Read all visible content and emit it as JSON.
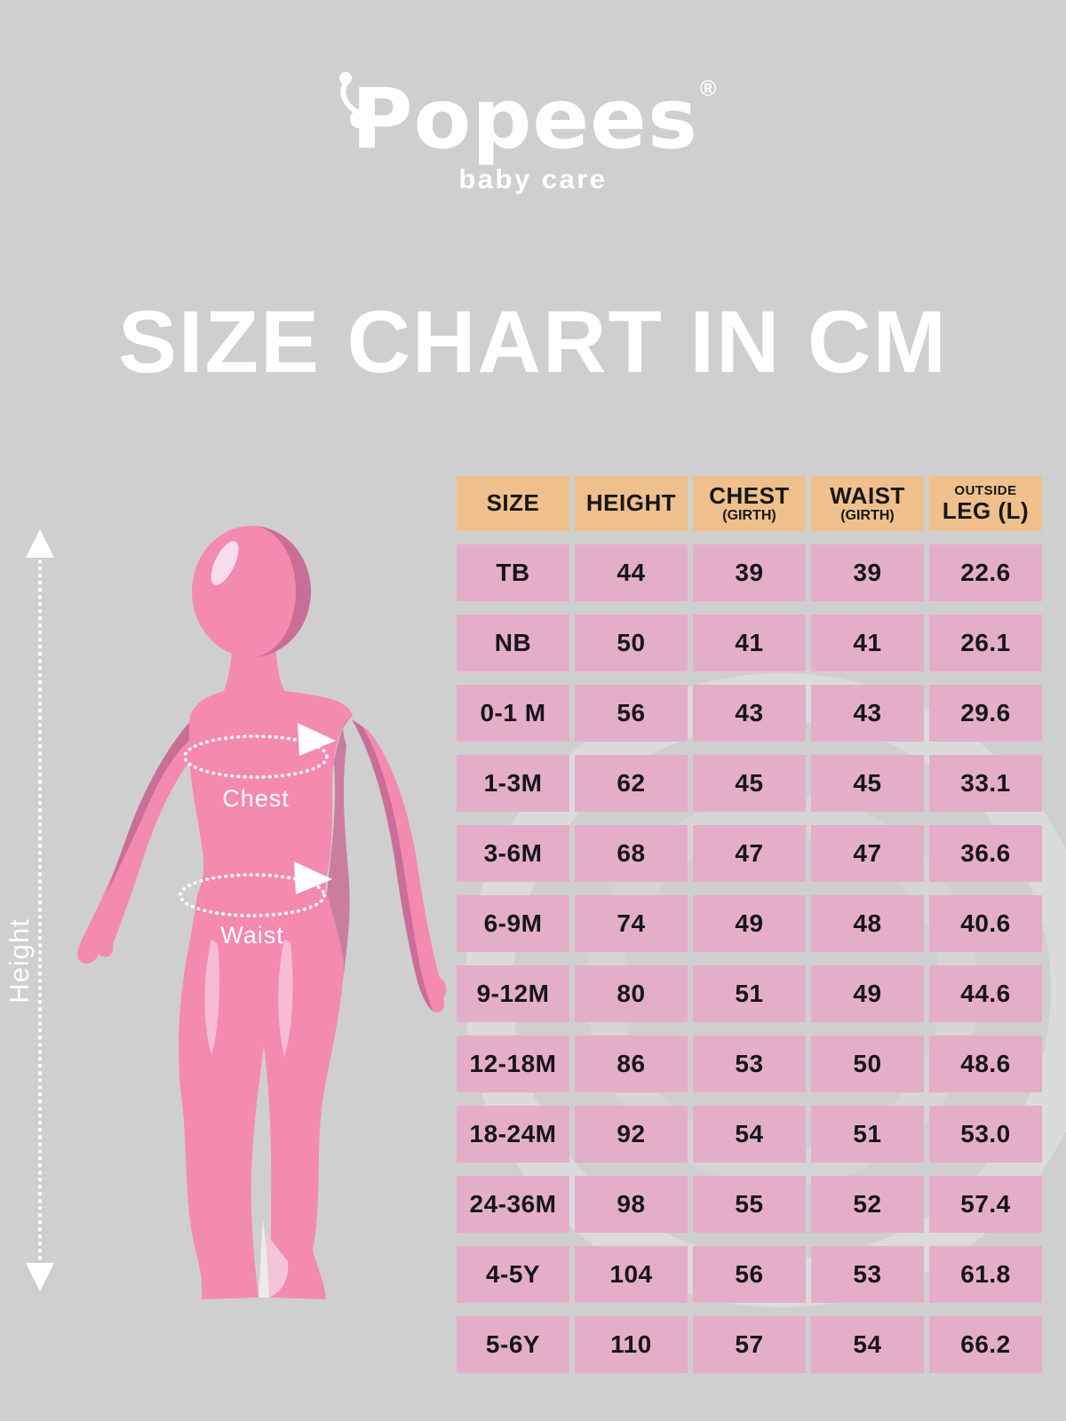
{
  "brand": {
    "name": "Popees",
    "registered": "®",
    "tagline": "baby care"
  },
  "title": "SIZE CHART IN CM",
  "figure_labels": {
    "height": "Height",
    "chest": "Chest",
    "waist": "Waist"
  },
  "table": {
    "headers": [
      {
        "main": "SIZE"
      },
      {
        "main": "HEIGHT"
      },
      {
        "main": "CHEST",
        "sub": "(GIRTH)"
      },
      {
        "main": "WAIST",
        "sub": "(GIRTH)"
      },
      {
        "top": "OUTSIDE",
        "main": "LEG (L)"
      }
    ],
    "rows": [
      {
        "size": "TB",
        "values": [
          "44",
          "39",
          "39",
          "22.6"
        ]
      },
      {
        "size": "NB",
        "values": [
          "50",
          "41",
          "41",
          "26.1"
        ]
      },
      {
        "size": "0-1 M",
        "values": [
          "56",
          "43",
          "43",
          "29.6"
        ]
      },
      {
        "size": "1-3M",
        "values": [
          "62",
          "45",
          "45",
          "33.1"
        ]
      },
      {
        "size": "3-6M",
        "values": [
          "68",
          "47",
          "47",
          "36.6"
        ]
      },
      {
        "size": "6-9M",
        "values": [
          "74",
          "49",
          "48",
          "40.6"
        ]
      },
      {
        "size": "9-12M",
        "values": [
          "80",
          "51",
          "49",
          "44.6"
        ]
      },
      {
        "size": "12-18M",
        "values": [
          "86",
          "53",
          "50",
          "48.6"
        ]
      },
      {
        "size": "18-24M",
        "values": [
          "92",
          "54",
          "51",
          "53.0"
        ]
      },
      {
        "size": "24-36M",
        "values": [
          "98",
          "55",
          "52",
          "57.4"
        ]
      },
      {
        "size": "4-5Y",
        "values": [
          "104",
          "56",
          "53",
          "61.8"
        ]
      },
      {
        "size": "5-6Y",
        "values": [
          "110",
          "57",
          "54",
          "66.2"
        ]
      }
    ]
  },
  "colors": {
    "background": "#d0cfcf",
    "header_cell": "#efc08c",
    "data_cell": "#e5aec8",
    "text_dark": "#161616",
    "white": "#ffffff",
    "body_pink": "#f48ab0",
    "body_shadow": "#c96e96",
    "body_highlight": "#f6bcd4"
  }
}
